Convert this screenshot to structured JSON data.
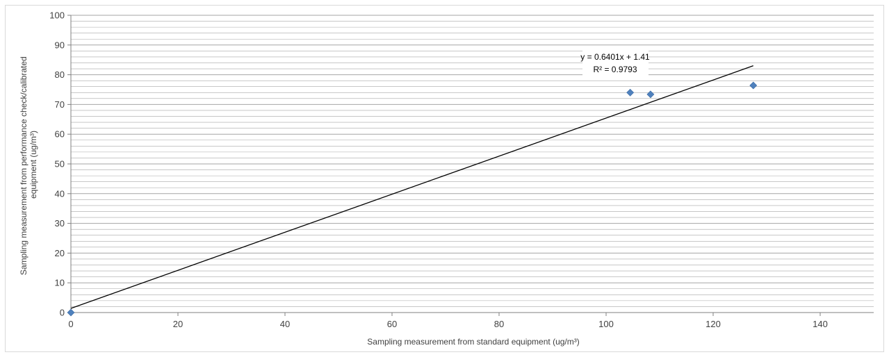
{
  "chart_data": {
    "type": "scatter",
    "series": [
      {
        "points": [
          {
            "x": 0,
            "y": 0
          },
          {
            "x": 104.5,
            "y": 74
          },
          {
            "x": 108.3,
            "y": 73.4
          },
          {
            "x": 127.5,
            "y": 76.4
          }
        ],
        "marker": "diamond",
        "color": "#4f81bd"
      }
    ],
    "trendline": {
      "type": "linear",
      "slope": 0.6401,
      "intercept": 1.41,
      "x_range": [
        0,
        127.5
      ],
      "equation_label": "y = 0.6401x + 1.41",
      "r2_label": "R² = 0.9793",
      "color": "#000000"
    },
    "xlabel": "Sampling measurement from standard equipment  (ug/m³)",
    "ylabel_lines": [
      "Sampling measurement from performance check/calibrated",
      "equipment (ug/m³)"
    ],
    "xlim": [
      0,
      150
    ],
    "ylim": [
      0,
      100
    ],
    "x_ticks": [
      "0",
      "20",
      "40",
      "60",
      "80",
      "100",
      "120",
      "140"
    ],
    "y_ticks": [
      "0",
      "10",
      "20",
      "30",
      "40",
      "50",
      "60",
      "70",
      "80",
      "90",
      "100"
    ],
    "major_grid": true,
    "minor_grid": true,
    "grid_color": "#a6a6a6"
  }
}
